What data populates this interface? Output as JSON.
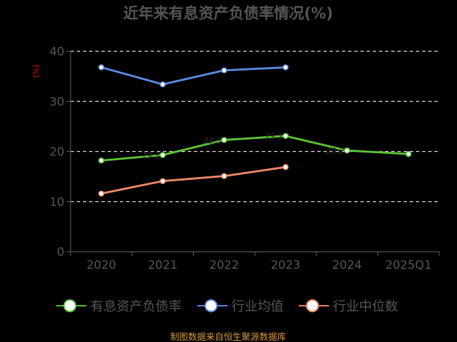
{
  "chart_data": {
    "type": "line",
    "title": "近年来有息资产负债率情况(%)",
    "ylabel": "(%)",
    "xlabel": "",
    "categories": [
      "2020",
      "2021",
      "2022",
      "2023",
      "2024",
      "2025Q1"
    ],
    "ylim": [
      0,
      40
    ],
    "yticks": [
      0,
      10,
      20,
      30,
      40
    ],
    "grid": true,
    "legend_position": "bottom",
    "series": [
      {
        "name": "有息资产负债率",
        "color": "#5cc535",
        "values": [
          18.2,
          19.3,
          22.3,
          23.1,
          20.2,
          19.5
        ],
        "point_labels": [
          "",
          "19.3",
          "22.3",
          "23.1",
          "20.2",
          ""
        ]
      },
      {
        "name": "行业均值",
        "color": "#5b8ae0",
        "values": [
          36.8,
          33.4,
          36.2,
          36.8,
          null,
          null
        ],
        "point_labels": [
          "",
          "",
          "",
          "",
          "",
          ""
        ]
      },
      {
        "name": "行业中位数",
        "color": "#ee8866",
        "values": [
          11.6,
          14.1,
          15.1,
          16.9,
          null,
          null
        ],
        "point_labels": [
          "",
          "",
          "",
          "",
          "",
          ""
        ]
      }
    ]
  },
  "source_text": "制图数据来自恒生聚源数据库"
}
